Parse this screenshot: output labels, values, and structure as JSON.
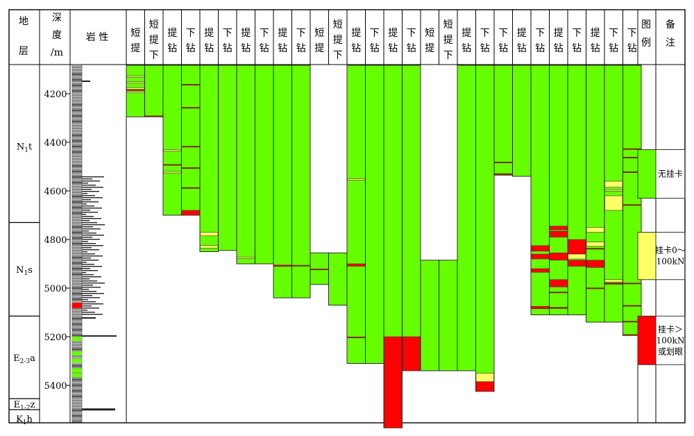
{
  "chart_data": {
    "type": "table",
    "column_headers": {
      "strata": "地层",
      "depth": "深度/m",
      "lithology": "岩 性",
      "legend": "图例",
      "remarks": "备注"
    },
    "strata": [
      {
        "label": "N1t",
        "top": 4100,
        "base": 4730
      },
      {
        "label": "N1s",
        "top": 4730,
        "base": 5115
      },
      {
        "label": "E2-3a",
        "top": 5115,
        "base": 5455
      },
      {
        "label": "E1-2z",
        "top": 5455,
        "base": 5500
      },
      {
        "label": "K1h",
        "top": 5500,
        "base": 5575
      }
    ],
    "depth_axis": {
      "min": 4100,
      "max": 5575,
      "ticks": [
        4200,
        4400,
        4600,
        4800,
        5000,
        5200,
        5400
      ]
    },
    "colors": {
      "none": "#66ff00",
      "moderate": "#ffff66",
      "severe": "#ff0000",
      "line": "#000000",
      "border": "#2b2b2b"
    },
    "trips": [
      {
        "label": "短提",
        "start": 4100,
        "end": 4295,
        "events": [
          {
            "from": 4126,
            "to": 4128,
            "level": "moderate"
          },
          {
            "from": 4150,
            "to": 4153,
            "level": "moderate"
          },
          {
            "from": 4175,
            "to": 4182,
            "level": "moderate"
          },
          {
            "from": 4190,
            "to": 4196,
            "level": "moderate"
          },
          {
            "from": 4182,
            "to": 4184,
            "level": "line"
          }
        ]
      },
      {
        "label": "短提下",
        "start": 4100,
        "end": 4295,
        "events": [
          {
            "from": 4290,
            "to": 4292,
            "level": "line"
          }
        ]
      },
      {
        "label": "提钻",
        "start": 4100,
        "end": 4700,
        "events": [
          {
            "from": 4430,
            "to": 4436,
            "level": "moderate"
          },
          {
            "from": 4490,
            "to": 4492,
            "level": "line"
          },
          {
            "from": 4520,
            "to": 4526,
            "level": "moderate"
          }
        ]
      },
      {
        "label": "下钻",
        "start": 4100,
        "end": 4700,
        "events": [
          {
            "from": 4160,
            "to": 4163,
            "level": "line"
          },
          {
            "from": 4255,
            "to": 4258,
            "level": "line"
          },
          {
            "from": 4415,
            "to": 4418,
            "level": "line"
          },
          {
            "from": 4503,
            "to": 4506,
            "level": "line"
          },
          {
            "from": 4585,
            "to": 4588,
            "level": "line"
          },
          {
            "from": 4680,
            "to": 4700,
            "level": "severe"
          }
        ]
      },
      {
        "label": "提钻",
        "start": 4100,
        "end": 4850,
        "events": [
          {
            "from": 4770,
            "to": 4785,
            "level": "moderate"
          },
          {
            "from": 4825,
            "to": 4835,
            "level": "moderate"
          }
        ]
      },
      {
        "label": "下钻",
        "start": 4100,
        "end": 4845,
        "events": []
      },
      {
        "label": "提钻",
        "start": 4100,
        "end": 4900,
        "events": [
          {
            "from": 4872,
            "to": 4876,
            "level": "moderate"
          }
        ]
      },
      {
        "label": "下钻",
        "start": 4100,
        "end": 4900,
        "events": []
      },
      {
        "label": "提钻",
        "start": 4100,
        "end": 5040,
        "events": [
          {
            "from": 4905,
            "to": 4910,
            "level": "severe"
          }
        ]
      },
      {
        "label": "下钻",
        "start": 4100,
        "end": 5040,
        "events": [
          {
            "from": 4905,
            "to": 4910,
            "level": "line"
          }
        ]
      },
      {
        "label": "短提",
        "start": 4855,
        "end": 4985,
        "events": [
          {
            "from": 4920,
            "to": 4922,
            "level": "line"
          }
        ]
      },
      {
        "label": "短提下",
        "start": 4855,
        "end": 5070,
        "events": []
      },
      {
        "label": "提钻",
        "start": 4100,
        "end": 5310,
        "events": [
          {
            "from": 4550,
            "to": 4556,
            "level": "moderate"
          },
          {
            "from": 4900,
            "to": 4910,
            "level": "severe"
          },
          {
            "from": 5200,
            "to": 5205,
            "level": "line"
          }
        ]
      },
      {
        "label": "下钻",
        "start": 4100,
        "end": 5310,
        "events": []
      },
      {
        "label": "提钻",
        "start": 4100,
        "end": 5575,
        "events": [
          {
            "from": 5200,
            "to": 5575,
            "level": "severe"
          }
        ]
      },
      {
        "label": "下钻",
        "start": 4100,
        "end": 5340,
        "events": [
          {
            "from": 5200,
            "to": 5340,
            "level": "severe"
          }
        ]
      },
      {
        "label": "短提",
        "start": 4885,
        "end": 5340,
        "events": []
      },
      {
        "label": "短提下",
        "start": 4885,
        "end": 5340,
        "events": []
      },
      {
        "label": "提钻",
        "start": 4100,
        "end": 5340,
        "events": []
      },
      {
        "label": "下钻",
        "start": 4100,
        "end": 5425,
        "events": [
          {
            "from": 5350,
            "to": 5385,
            "level": "moderate"
          },
          {
            "from": 5385,
            "to": 5425,
            "level": "severe"
          }
        ]
      },
      {
        "label": "下钻",
        "start": 4100,
        "end": 4535,
        "events": [
          {
            "from": 4480,
            "to": 4484,
            "level": "line"
          },
          {
            "from": 4528,
            "to": 4530,
            "level": "line"
          }
        ]
      },
      {
        "label": "提钻",
        "start": 4100,
        "end": 4540,
        "events": []
      },
      {
        "label": "下钻",
        "start": 4100,
        "end": 5110,
        "events": [
          {
            "from": 4825,
            "to": 4848,
            "level": "severe"
          },
          {
            "from": 4860,
            "to": 4880,
            "level": "severe"
          },
          {
            "from": 4920,
            "to": 4935,
            "level": "severe"
          },
          {
            "from": 5075,
            "to": 5085,
            "level": "severe"
          }
        ]
      },
      {
        "label": "提钻",
        "start": 4100,
        "end": 5110,
        "events": [
          {
            "from": 4745,
            "to": 4760,
            "level": "severe"
          },
          {
            "from": 4765,
            "to": 4790,
            "level": "severe"
          },
          {
            "from": 4855,
            "to": 4885,
            "level": "severe"
          },
          {
            "from": 4965,
            "to": 4995,
            "level": "severe"
          },
          {
            "from": 5015,
            "to": 5020,
            "level": "line"
          },
          {
            "from": 5078,
            "to": 5085,
            "level": "line"
          }
        ]
      },
      {
        "label": "下钻",
        "start": 4100,
        "end": 5110,
        "events": [
          {
            "from": 4800,
            "to": 4860,
            "level": "severe"
          },
          {
            "from": 4860,
            "to": 4880,
            "level": "moderate"
          },
          {
            "from": 4885,
            "to": 4910,
            "level": "severe"
          }
        ]
      },
      {
        "label": "提钻",
        "start": 4100,
        "end": 5140,
        "events": [
          {
            "from": 4750,
            "to": 4770,
            "level": "moderate"
          },
          {
            "from": 4810,
            "to": 4828,
            "level": "moderate"
          },
          {
            "from": 4835,
            "to": 4840,
            "level": "line"
          },
          {
            "from": 4885,
            "to": 4915,
            "level": "severe"
          },
          {
            "from": 4998,
            "to": 5002,
            "level": "line"
          }
        ]
      },
      {
        "label": "下钻",
        "start": 4100,
        "end": 5140,
        "events": [
          {
            "from": 4560,
            "to": 4585,
            "level": "moderate"
          },
          {
            "from": 4595,
            "to": 4600,
            "level": "moderate"
          },
          {
            "from": 4620,
            "to": 4680,
            "level": "moderate"
          },
          {
            "from": 4965,
            "to": 4975,
            "level": "moderate"
          },
          {
            "from": 4978,
            "to": 4985,
            "level": "line"
          }
        ]
      },
      {
        "label": "下钻",
        "start": 4100,
        "end": 5195,
        "events": [
          {
            "from": 4425,
            "to": 4430,
            "level": "line"
          },
          {
            "from": 4460,
            "to": 4463,
            "level": "line"
          },
          {
            "from": 4520,
            "to": 4523,
            "level": "line"
          },
          {
            "from": 4655,
            "to": 4660,
            "level": "line"
          },
          {
            "from": 4978,
            "to": 4982,
            "level": "line"
          },
          {
            "from": 5070,
            "to": 5073,
            "level": "line"
          },
          {
            "from": 5135,
            "to": 5138,
            "level": "line"
          },
          {
            "from": 5190,
            "to": 5195,
            "level": "line"
          }
        ]
      }
    ],
    "legend": [
      {
        "level": "none",
        "color": "#66ff00",
        "from": 4430,
        "to": 4630,
        "label": "无挂卡"
      },
      {
        "level": "moderate",
        "color": "#ffff66",
        "from": 4770,
        "to": 4965,
        "label": "挂卡0～100kN"
      },
      {
        "level": "severe",
        "color": "#ff0000",
        "from": 5115,
        "to": 5315,
        "label": "挂卡＞100kN或划眼"
      }
    ]
  }
}
